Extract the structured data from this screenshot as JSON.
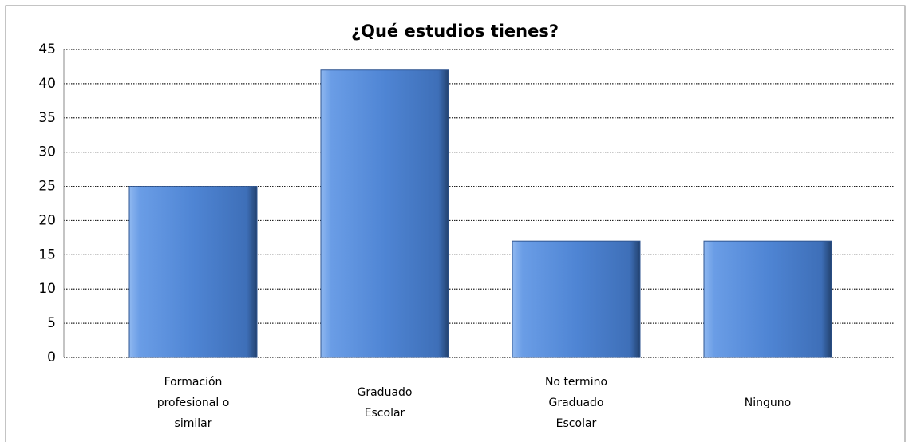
{
  "chart_data": {
    "type": "bar",
    "title": "¿Qué estudios tienes?",
    "categories": [
      "Formación profesional o similar",
      "Graduado Escolar",
      "No termino Graduado Escolar",
      "Ninguno"
    ],
    "values": [
      25,
      42,
      17,
      17
    ],
    "color": "#4f81d0",
    "ylim": [
      0,
      45
    ],
    "yticks": [
      0,
      5,
      10,
      15,
      20,
      25,
      30,
      35,
      40,
      45
    ],
    "grid": true
  }
}
